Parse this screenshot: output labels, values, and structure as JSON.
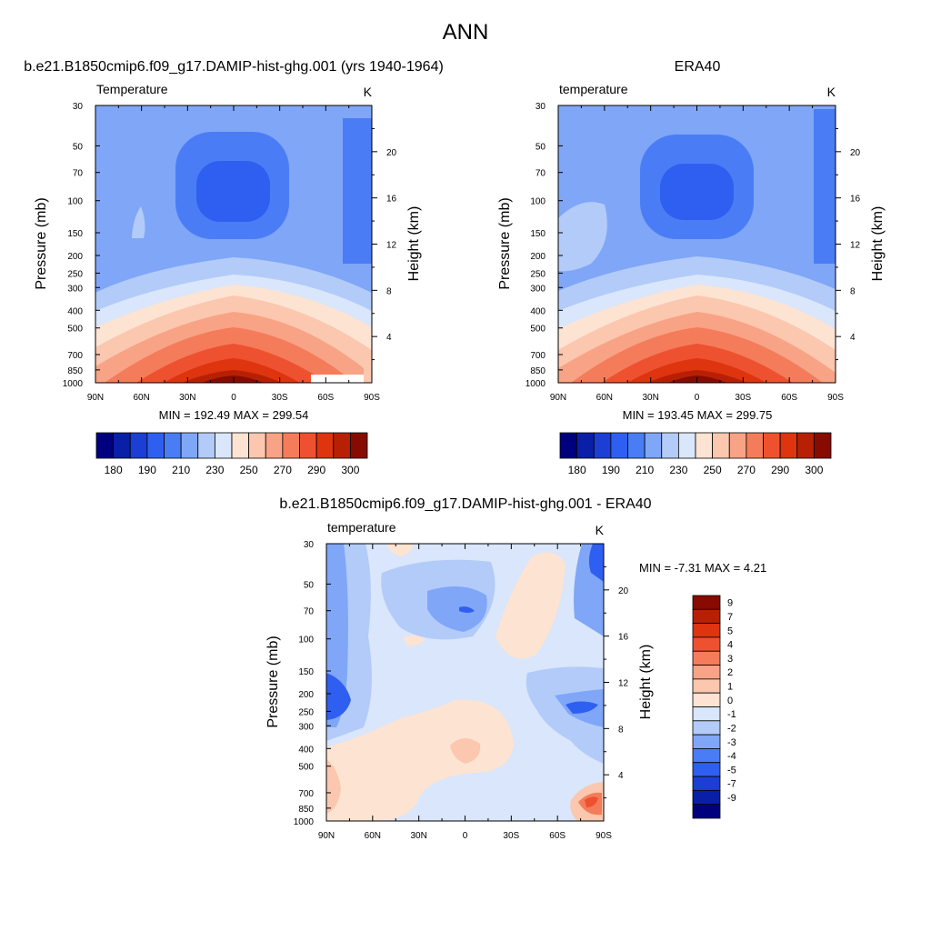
{
  "page_title": "ANN",
  "colors": {
    "frame": "#000000",
    "background": "#ffffff"
  },
  "chart_data": [
    {
      "type": "heatmap",
      "id": "model",
      "header": "b.e21.B1850cmip6.f09_g17.DAMIP-hist-ghg.001 (yrs 1940-1964)",
      "left_label": "Temperature",
      "units": "K",
      "ylabel": "Pressure (mb)",
      "y2label": "Height (km)",
      "x_ticks": [
        "90N",
        "60N",
        "30N",
        "0",
        "30S",
        "60S",
        "90S"
      ],
      "x_values": [
        90,
        60,
        30,
        0,
        -30,
        -60,
        -90
      ],
      "xlim": [
        90,
        -90
      ],
      "y_ticks": [
        "30",
        "50",
        "70",
        "100",
        "150",
        "200",
        "250",
        "300",
        "400",
        "500",
        "700",
        "850",
        "1000"
      ],
      "y_values": [
        30,
        50,
        70,
        100,
        150,
        200,
        250,
        300,
        400,
        500,
        700,
        850,
        1000
      ],
      "ylim": [
        1000,
        30
      ],
      "y2_ticks": [
        "20",
        "16",
        "12",
        "8",
        "4"
      ],
      "y2_values": [
        20,
        16,
        12,
        8,
        4
      ],
      "stats": "MIN = 192.49  MAX = 299.54",
      "min": 192.49,
      "max": 299.54,
      "colorbar_labels": [
        "180",
        "190",
        "210",
        "230",
        "250",
        "270",
        "290",
        "300"
      ],
      "colorbar_colors": [
        "#00007f",
        "#0a1fa8",
        "#1c3ed4",
        "#2f5ff0",
        "#4a7df5",
        "#7fa6f7",
        "#b3cbf9",
        "#d9e6fb",
        "#fde3d2",
        "#fbc7ae",
        "#f8a385",
        "#f47c5a",
        "#ee5130",
        "#de3410",
        "#b82006",
        "#870b00"
      ]
    },
    {
      "type": "heatmap",
      "id": "obs",
      "header": "ERA40",
      "left_label": "temperature",
      "units": "K",
      "ylabel": "Pressure (mb)",
      "y2label": "Height (km)",
      "x_ticks": [
        "90N",
        "60N",
        "30N",
        "0",
        "30S",
        "60S",
        "90S"
      ],
      "x_values": [
        90,
        60,
        30,
        0,
        -30,
        -60,
        -90
      ],
      "xlim": [
        90,
        -90
      ],
      "y_ticks": [
        "30",
        "50",
        "70",
        "100",
        "150",
        "200",
        "250",
        "300",
        "400",
        "500",
        "700",
        "850",
        "1000"
      ],
      "y_values": [
        30,
        50,
        70,
        100,
        150,
        200,
        250,
        300,
        400,
        500,
        700,
        850,
        1000
      ],
      "ylim": [
        1000,
        30
      ],
      "y2_ticks": [
        "20",
        "16",
        "12",
        "8",
        "4"
      ],
      "y2_values": [
        20,
        16,
        12,
        8,
        4
      ],
      "stats": "MIN = 193.45  MAX = 299.75",
      "min": 193.45,
      "max": 299.75,
      "colorbar_labels": [
        "180",
        "190",
        "210",
        "230",
        "250",
        "270",
        "290",
        "300"
      ],
      "colorbar_colors": [
        "#00007f",
        "#0a1fa8",
        "#1c3ed4",
        "#2f5ff0",
        "#4a7df5",
        "#7fa6f7",
        "#b3cbf9",
        "#d9e6fb",
        "#fde3d2",
        "#fbc7ae",
        "#f8a385",
        "#f47c5a",
        "#ee5130",
        "#de3410",
        "#b82006",
        "#870b00"
      ]
    },
    {
      "type": "heatmap",
      "id": "diff",
      "header": "b.e21.B1850cmip6.f09_g17.DAMIP-hist-ghg.001 - ERA40",
      "left_label": "temperature",
      "units": "K",
      "ylabel": "Pressure (mb)",
      "y2label": "Height (km)",
      "x_ticks": [
        "90N",
        "60N",
        "30N",
        "0",
        "30S",
        "60S",
        "90S"
      ],
      "x_values": [
        90,
        60,
        30,
        0,
        -30,
        -60,
        -90
      ],
      "xlim": [
        90,
        -90
      ],
      "y_ticks": [
        "30",
        "50",
        "70",
        "100",
        "150",
        "200",
        "250",
        "300",
        "400",
        "500",
        "700",
        "850",
        "1000"
      ],
      "y_values": [
        30,
        50,
        70,
        100,
        150,
        200,
        250,
        300,
        400,
        500,
        700,
        850,
        1000
      ],
      "ylim": [
        1000,
        30
      ],
      "y2_ticks": [
        "20",
        "16",
        "12",
        "8",
        "4"
      ],
      "y2_values": [
        20,
        16,
        12,
        8,
        4
      ],
      "stats": "MIN =  -7.31  MAX =   4.21",
      "min": -7.31,
      "max": 4.21,
      "colorbar_labels": [
        "9",
        "7",
        "5",
        "4",
        "3",
        "2",
        "1",
        "0",
        "-1",
        "-2",
        "-3",
        "-4",
        "-5",
        "-7",
        "-9"
      ],
      "colorbar_colors": [
        "#870b00",
        "#b82006",
        "#de3410",
        "#ee5130",
        "#f47c5a",
        "#f8a385",
        "#fbc7ae",
        "#fde3d2",
        "#d9e6fb",
        "#b3cbf9",
        "#7fa6f7",
        "#4a7df5",
        "#2f5ff0",
        "#1c3ed4",
        "#0a1fa8",
        "#00007f"
      ]
    }
  ]
}
